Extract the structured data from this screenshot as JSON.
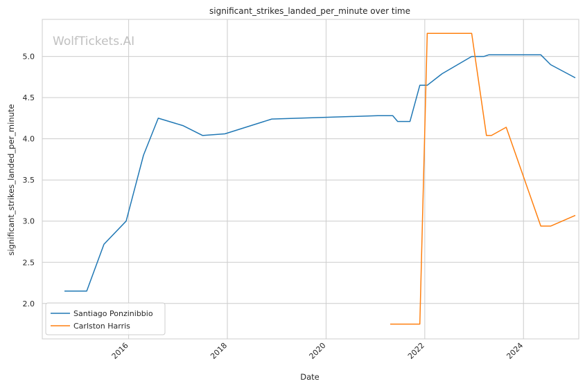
{
  "chart_data": {
    "type": "line",
    "title": "significant_strikes_landed_per_minute over time",
    "xlabel": "Date",
    "ylabel": "significant_strikes_landed_per_minute",
    "watermark": "WolfTickets.AI",
    "xlim": [
      2014.25,
      2025.12
    ],
    "ylim": [
      1.57,
      5.45
    ],
    "x_ticks": [
      2016,
      2018,
      2020,
      2022,
      2024
    ],
    "x_tick_labels": [
      "2016",
      "2018",
      "2020",
      "2022",
      "2024"
    ],
    "y_ticks": [
      2.0,
      2.5,
      3.0,
      3.5,
      4.0,
      4.5,
      5.0
    ],
    "y_tick_labels": [
      "2.0",
      "2.5",
      "3.0",
      "3.5",
      "4.0",
      "4.5",
      "5.0"
    ],
    "grid": true,
    "legend_position": "lower-left",
    "series": [
      {
        "name": "Santiago Ponzinibbio",
        "color": "#1f77b4",
        "points": [
          [
            2014.7,
            2.15
          ],
          [
            2015.15,
            2.15
          ],
          [
            2015.5,
            2.72
          ],
          [
            2015.95,
            3.0
          ],
          [
            2016.3,
            3.8
          ],
          [
            2016.6,
            4.25
          ],
          [
            2017.1,
            4.16
          ],
          [
            2017.5,
            4.04
          ],
          [
            2017.95,
            4.06
          ],
          [
            2018.9,
            4.24
          ],
          [
            2021.05,
            4.28
          ],
          [
            2021.35,
            4.28
          ],
          [
            2021.45,
            4.21
          ],
          [
            2021.7,
            4.21
          ],
          [
            2021.9,
            4.65
          ],
          [
            2022.05,
            4.65
          ],
          [
            2022.35,
            4.79
          ],
          [
            2022.95,
            5.0
          ],
          [
            2023.2,
            5.0
          ],
          [
            2023.3,
            5.02
          ],
          [
            2024.35,
            5.02
          ],
          [
            2024.55,
            4.9
          ],
          [
            2025.05,
            4.74
          ]
        ]
      },
      {
        "name": "Carlston Harris",
        "color": "#ff7f0e",
        "points": [
          [
            2021.3,
            1.75
          ],
          [
            2021.9,
            1.75
          ],
          [
            2022.05,
            5.28
          ],
          [
            2022.95,
            5.28
          ],
          [
            2023.25,
            4.04
          ],
          [
            2023.35,
            4.04
          ],
          [
            2023.65,
            4.14
          ],
          [
            2024.35,
            2.94
          ],
          [
            2024.55,
            2.94
          ],
          [
            2025.05,
            3.07
          ]
        ]
      }
    ]
  }
}
